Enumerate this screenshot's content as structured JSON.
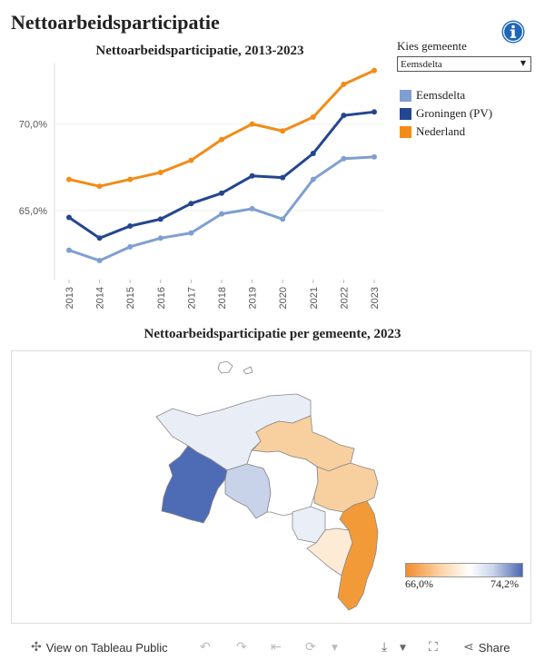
{
  "page": {
    "title": "Nettoarbeidsparticipatie"
  },
  "filter": {
    "label": "Kies gemeente",
    "selected": "Eemsdelta"
  },
  "chart_data": [
    {
      "type": "line",
      "title": "Nettoarbeidsparticipatie, 2013-2023",
      "x": [
        "2013",
        "2014",
        "2015",
        "2016",
        "2017",
        "2018",
        "2019",
        "2020",
        "2021",
        "2022",
        "2023"
      ],
      "y_ticks": [
        "65,0%",
        "70,0%"
      ],
      "ylim": [
        61.0,
        73.5
      ],
      "series": [
        {
          "name": "Eemsdelta",
          "color": "#7f9fd1",
          "values": [
            62.7,
            62.1,
            62.9,
            63.4,
            63.7,
            64.8,
            65.1,
            64.5,
            66.8,
            68.0,
            68.1
          ]
        },
        {
          "name": "Groningen (PV)",
          "color": "#24468f",
          "values": [
            64.6,
            63.4,
            64.1,
            64.5,
            65.4,
            66.0,
            67.0,
            66.9,
            68.3,
            70.5,
            70.7
          ]
        },
        {
          "name": "Nederland",
          "color": "#f28c17",
          "values": [
            66.8,
            66.4,
            66.8,
            67.2,
            67.9,
            69.1,
            70.0,
            69.6,
            70.4,
            72.3,
            73.1
          ]
        }
      ]
    },
    {
      "type": "map",
      "title": "Nettoarbeidsparticipatie per gemeente, 2023",
      "color_range": [
        "66,0%",
        "74,2%"
      ],
      "color_min": "#f28c2d",
      "color_max": "#4a69b1"
    }
  ],
  "footer": {
    "view_label": "View on Tableau Public",
    "share_label": "Share"
  }
}
